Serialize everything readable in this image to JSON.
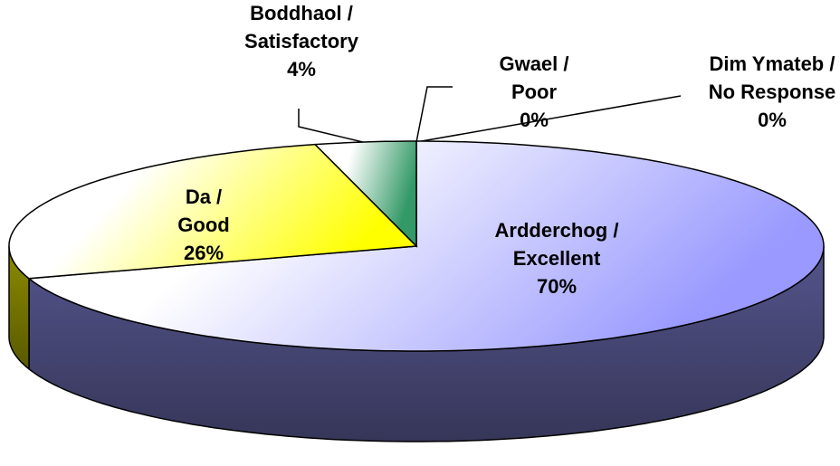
{
  "chart_data": {
    "type": "pie",
    "categories": [
      "Ardderchog / Excellent",
      "Da / Good",
      "Boddhaol / Satisfactory",
      "Gwael / Poor",
      "Dim Ymateb / No Response"
    ],
    "values": [
      70,
      26,
      4,
      0,
      0
    ],
    "value_labels": [
      "70%",
      "26%",
      "4%",
      "0%",
      "0%"
    ],
    "colors": [
      "#9999ff",
      "#ffff00",
      "#339966",
      "#993366",
      "#ffffcc"
    ]
  }
}
